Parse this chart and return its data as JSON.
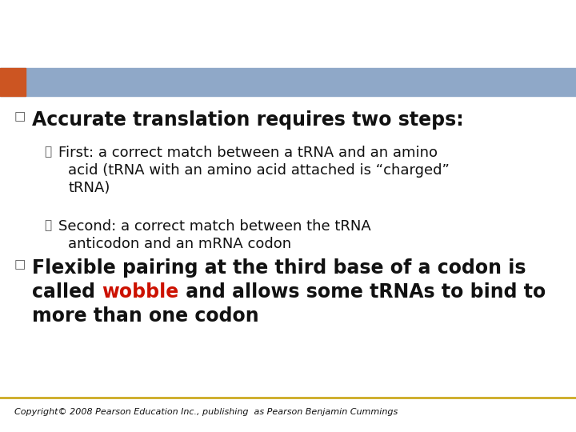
{
  "bg_color": "#ffffff",
  "header_bar_color": "#8fa8c8",
  "orange_rect_color": "#cc5522",
  "footer_line_color": "#ccaa22",
  "footer_text": "Copyright© 2008 Pearson Education Inc., publishing  as Pearson Benjamin Cummings",
  "footer_fontsize": 8,
  "bullet_marker": "□",
  "bullet_color": "#555555",
  "sub_bullet_marker": "⦿",
  "sub_bullet_color": "#555555",
  "bullet1_text": "Accurate translation requires two steps:",
  "bullet1_fontsize": 17,
  "sub1_line1": "First: a correct match between a tRNA and an amino",
  "sub1_line2": "acid (tRNA with an amino acid attached is “charged”",
  "sub1_line3": "tRNA)",
  "sub2_line1": "Second: a correct match between the tRNA",
  "sub2_line2": "anticodon and an mRNA codon",
  "sub_fontsize": 13,
  "bullet2_line1": "Flexible pairing at the third base of a codon is",
  "bullet2_line2_before": "called ",
  "bullet2_line2_wobble": "wobble",
  "bullet2_line2_after": " and allows some tRNAs to bind to",
  "bullet2_line3": "more than one codon",
  "bullet2_fontsize": 17,
  "wobble_color": "#cc1100",
  "text_color": "#111111"
}
